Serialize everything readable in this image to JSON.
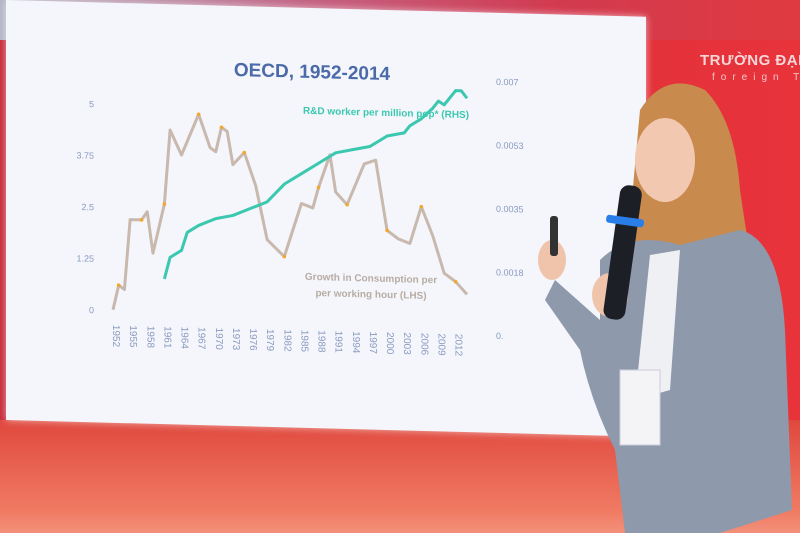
{
  "banner": {
    "brand_text": "TRƯỜNG ĐẠI",
    "brand_sub": "foreign T"
  },
  "chart_data": {
    "type": "line",
    "title": "OECD, 1952-2014",
    "x_ticks": [
      "1952",
      "1955",
      "1958",
      "1961",
      "1964",
      "1967",
      "1970",
      "1973",
      "1976",
      "1979",
      "1982",
      "1985",
      "1988",
      "1991",
      "1994",
      "1997",
      "2000",
      "2003",
      "2006",
      "2009",
      "2012"
    ],
    "y_left_ticks": [
      "0",
      "1.25",
      "2.5",
      "3.75",
      "5"
    ],
    "y_right_ticks": [
      "0.",
      "0.0018",
      "0.0035",
      "0.0053",
      "0.007"
    ],
    "ylim_left": [
      0,
      5
    ],
    "ylim_right": [
      0,
      0.007
    ],
    "xlim": [
      1952,
      2014
    ],
    "grid": false,
    "series": [
      {
        "name": "Growth in Consumption per per working hour (LHS)",
        "label_lines": [
          "Growth in Consumption per",
          "per working hour (LHS)"
        ],
        "axis": "left",
        "color": "#c9b8ad",
        "marker_color": "#f0a830",
        "x": [
          1952,
          1953,
          1954,
          1955,
          1957,
          1958,
          1959,
          1961,
          1962,
          1964,
          1967,
          1969,
          1970,
          1971,
          1972,
          1973,
          1975,
          1977,
          1979,
          1982,
          1985,
          1987,
          1988,
          1990,
          1991,
          1993,
          1996,
          1998,
          2000,
          2002,
          2004,
          2006,
          2008,
          2010,
          2012,
          2014
        ],
        "y": [
          0,
          0.6,
          0.5,
          2.2,
          2.2,
          2.4,
          1.4,
          2.6,
          4.4,
          3.8,
          4.8,
          4.0,
          3.9,
          4.5,
          4.4,
          3.6,
          3.9,
          3.1,
          1.8,
          1.4,
          2.7,
          2.6,
          3.1,
          3.9,
          3.0,
          2.7,
          3.7,
          3.8,
          2.1,
          1.9,
          1.8,
          2.7,
          2.0,
          1.1,
          0.9,
          0.6
        ]
      },
      {
        "name": "R&D worker per million pop* (RHS)",
        "label": "R&D worker per million pop* (RHS)",
        "axis": "right",
        "color": "#3cc8b0",
        "x": [
          1961,
          1962,
          1964,
          1965,
          1967,
          1970,
          1973,
          1976,
          1979,
          1982,
          1985,
          1988,
          1991,
          1994,
          1997,
          1998,
          2000,
          2003,
          2004,
          2006,
          2008,
          2009,
          2010,
          2012,
          2013,
          2014
        ],
        "y": [
          0.0013,
          0.0019,
          0.0021,
          0.0026,
          0.0028,
          0.003,
          0.0031,
          0.0033,
          0.0035,
          0.004,
          0.0043,
          0.0046,
          0.0049,
          0.005,
          0.0051,
          0.0052,
          0.0054,
          0.0055,
          0.0057,
          0.0059,
          0.0062,
          0.0064,
          0.0063,
          0.0067,
          0.0067,
          0.0065
        ]
      }
    ]
  }
}
